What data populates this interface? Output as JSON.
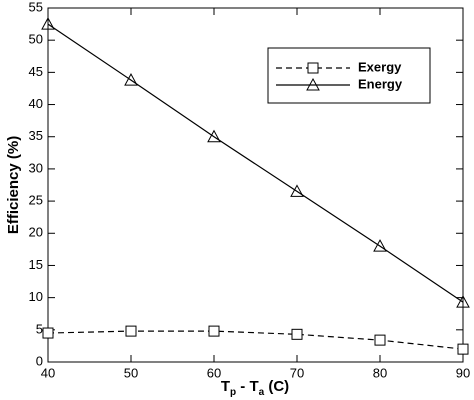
{
  "chart_data": {
    "type": "line",
    "x_label": [
      "T",
      "p",
      " - T",
      "a",
      " (C)"
    ],
    "y_label": "Efficiency (%)",
    "x": [
      40,
      50,
      60,
      70,
      80,
      90
    ],
    "series": [
      {
        "name": "Exergy",
        "color": "#000000",
        "dash": true,
        "marker": "square",
        "values": [
          4.5,
          4.8,
          4.8,
          4.3,
          3.4,
          2.0
        ]
      },
      {
        "name": "Energy",
        "color": "#000000",
        "dash": false,
        "marker": "triangle",
        "values": [
          52.5,
          43.8,
          35.0,
          26.5,
          18.0,
          9.3
        ]
      }
    ],
    "xlim": [
      40,
      90
    ],
    "xticks": [
      40,
      50,
      60,
      70,
      80,
      90
    ],
    "ylim": [
      0,
      55
    ],
    "yticks": [
      0,
      5,
      10,
      15,
      20,
      25,
      30,
      35,
      40,
      45,
      50,
      55
    ],
    "grid": false,
    "legend": "upper right"
  }
}
